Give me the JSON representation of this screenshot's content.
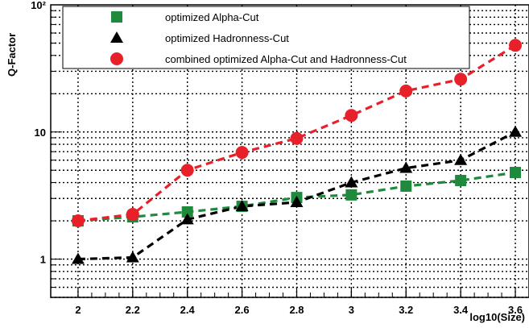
{
  "chart_data": {
    "type": "line",
    "xlabel": "log10(Size)",
    "ylabel": "Q-Factor",
    "xlim": [
      1.9,
      3.65
    ],
    "ylim": [
      0.5,
      100
    ],
    "y_scale": "log",
    "grid": true,
    "x_ticks": [
      "2",
      "2.2",
      "2.4",
      "2.6",
      "2.8",
      "3",
      "3.2",
      "3.4",
      "3.6"
    ],
    "x_tick_values": [
      2,
      2.2,
      2.4,
      2.6,
      2.8,
      3,
      3.2,
      3.4,
      3.6
    ],
    "y_tick_labels": [
      "1",
      "10",
      "10²"
    ],
    "y_tick_label_values": [
      1,
      10,
      100
    ],
    "legend_position": "top",
    "series": [
      {
        "name": "optimized Alpha-Cut",
        "marker": "square",
        "color": "#1f8a3c",
        "x": [
          2,
          2.2,
          2.4,
          2.6,
          2.8,
          3,
          3.2,
          3.4,
          3.6
        ],
        "values": [
          2.0,
          2.15,
          2.35,
          2.6,
          3.05,
          3.2,
          3.75,
          4.15,
          4.8
        ]
      },
      {
        "name": "optimized Hadronness-Cut",
        "marker": "triangle",
        "color": "#000000",
        "x": [
          2,
          2.2,
          2.4,
          2.6,
          2.8,
          3,
          3.2,
          3.4,
          3.6
        ],
        "values": [
          1.0,
          1.03,
          2.05,
          2.6,
          2.8,
          4.0,
          5.2,
          6.0,
          10.0
        ]
      },
      {
        "name": "combined optimized Alpha-Cut and Hadronness-Cut",
        "marker": "circle",
        "color": "#e8202a",
        "x": [
          2,
          2.2,
          2.4,
          2.6,
          2.8,
          3,
          3.2,
          3.4,
          3.6
        ],
        "values": [
          2.0,
          2.25,
          5.0,
          6.9,
          8.9,
          13.5,
          21.0,
          26.0,
          48.0
        ]
      }
    ]
  }
}
